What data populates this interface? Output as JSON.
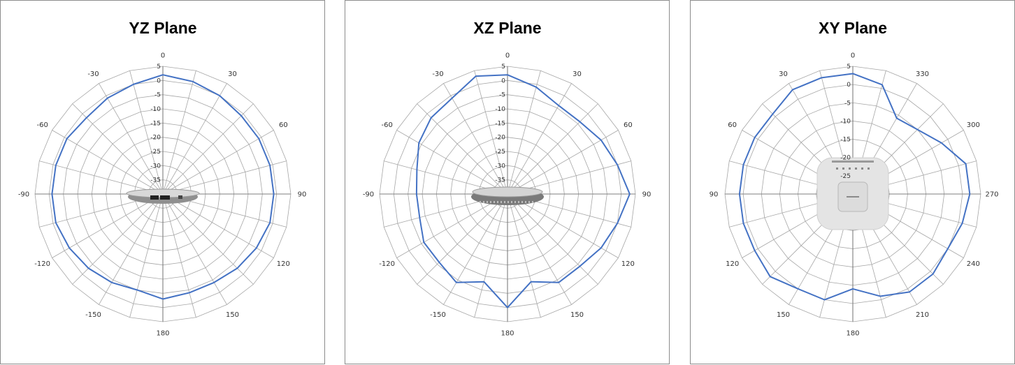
{
  "colors": {
    "series": "#4472c4",
    "grid": "#a6a6a6",
    "axis": "#7f7f7f"
  },
  "chart_data": [
    {
      "type": "polar-line",
      "title": "YZ Plane",
      "device_icon": "access-point-side-view-icon",
      "rlim": [
        -40,
        5
      ],
      "r_ticks": [
        "5",
        "0",
        "-5",
        "-10",
        "-15",
        "-20",
        "-25",
        "-30",
        "-35"
      ],
      "angle_labels": [
        {
          "angle": 0,
          "label": "0"
        },
        {
          "angle": 30,
          "label": "30"
        },
        {
          "angle": 60,
          "label": "60"
        },
        {
          "angle": 90,
          "label": "90"
        },
        {
          "angle": 120,
          "label": "120"
        },
        {
          "angle": 150,
          "label": "150"
        },
        {
          "angle": 180,
          "label": "180"
        },
        {
          "angle": 210,
          "label": "-150"
        },
        {
          "angle": 240,
          "label": "-120"
        },
        {
          "angle": 270,
          "label": "-90"
        },
        {
          "angle": 300,
          "label": "-60"
        },
        {
          "angle": 330,
          "label": "-30"
        }
      ],
      "series": [
        {
          "theta": [
            0,
            15,
            30,
            45,
            60,
            75,
            90,
            105,
            120,
            135,
            150,
            165,
            180,
            195,
            210,
            225,
            240,
            255,
            270,
            285,
            300,
            315,
            330,
            345
          ],
          "r": [
            2,
            1,
            0,
            -1,
            -1,
            -1,
            -1,
            -1,
            -2,
            -3,
            -4,
            -4,
            -3,
            -5,
            -4,
            -3,
            -2,
            -1,
            -1,
            -1,
            -1,
            -2,
            -1,
            0
          ]
        }
      ]
    },
    {
      "type": "polar-line",
      "title": "XZ Plane",
      "device_icon": "access-point-front-view-icon",
      "rlim": [
        -40,
        5
      ],
      "r_ticks": [
        "5",
        "0",
        "-5",
        "-10",
        "-15",
        "-20",
        "-25",
        "-30",
        "-35"
      ],
      "angle_labels": [
        {
          "angle": 0,
          "label": "0"
        },
        {
          "angle": 30,
          "label": "30"
        },
        {
          "angle": 60,
          "label": "60"
        },
        {
          "angle": 90,
          "label": "90"
        },
        {
          "angle": 120,
          "label": "120"
        },
        {
          "angle": 150,
          "label": "150"
        },
        {
          "angle": 180,
          "label": "180"
        },
        {
          "angle": 210,
          "label": "-150"
        },
        {
          "angle": 240,
          "label": "-120"
        },
        {
          "angle": 270,
          "label": "-90"
        },
        {
          "angle": 300,
          "label": "-60"
        },
        {
          "angle": 330,
          "label": "-30"
        }
      ],
      "series": [
        {
          "theta": [
            0,
            15,
            30,
            45,
            60,
            75,
            90,
            105,
            120,
            135,
            150,
            165,
            180,
            195,
            210,
            225,
            240,
            255,
            270,
            285,
            300,
            315,
            330,
            345
          ],
          "r": [
            2,
            -1,
            -4,
            -4,
            -2,
            0,
            3,
            0,
            -2,
            -4,
            -4,
            -8,
            0,
            -8,
            -4,
            -6,
            -6,
            -8,
            -8,
            -7,
            -4,
            -2,
            -1,
            3
          ]
        }
      ]
    },
    {
      "type": "polar-line",
      "title": "XY Plane",
      "device_icon": "access-point-top-view-icon",
      "rlim": [
        -30,
        5
      ],
      "r_ticks": [
        "5",
        "0",
        "-5",
        "-10",
        "-15",
        "-20",
        "-25"
      ],
      "angle_labels": [
        {
          "angle": 0,
          "label": "0"
        },
        {
          "angle": 30,
          "label": "330"
        },
        {
          "angle": 60,
          "label": "300"
        },
        {
          "angle": 90,
          "label": "270"
        },
        {
          "angle": 120,
          "label": "240"
        },
        {
          "angle": 150,
          "label": "210"
        },
        {
          "angle": 180,
          "label": "180"
        },
        {
          "angle": 210,
          "label": "150"
        },
        {
          "angle": 240,
          "label": "120"
        },
        {
          "angle": 270,
          "label": "90"
        },
        {
          "angle": 300,
          "label": "60"
        },
        {
          "angle": 330,
          "label": "30"
        }
      ],
      "series": [
        {
          "theta": [
            0,
            15,
            30,
            45,
            60,
            75,
            90,
            105,
            120,
            135,
            150,
            165,
            180,
            195,
            210,
            225,
            240,
            255,
            270,
            285,
            300,
            315,
            330,
            345
          ],
          "r": [
            3,
            1,
            -6,
            -5,
            -2,
            2,
            2,
            1,
            0,
            1,
            1,
            -1,
            -4,
            0,
            0,
            2,
            1,
            1,
            1,
            1,
            1,
            1,
            3,
            3
          ]
        }
      ]
    }
  ]
}
